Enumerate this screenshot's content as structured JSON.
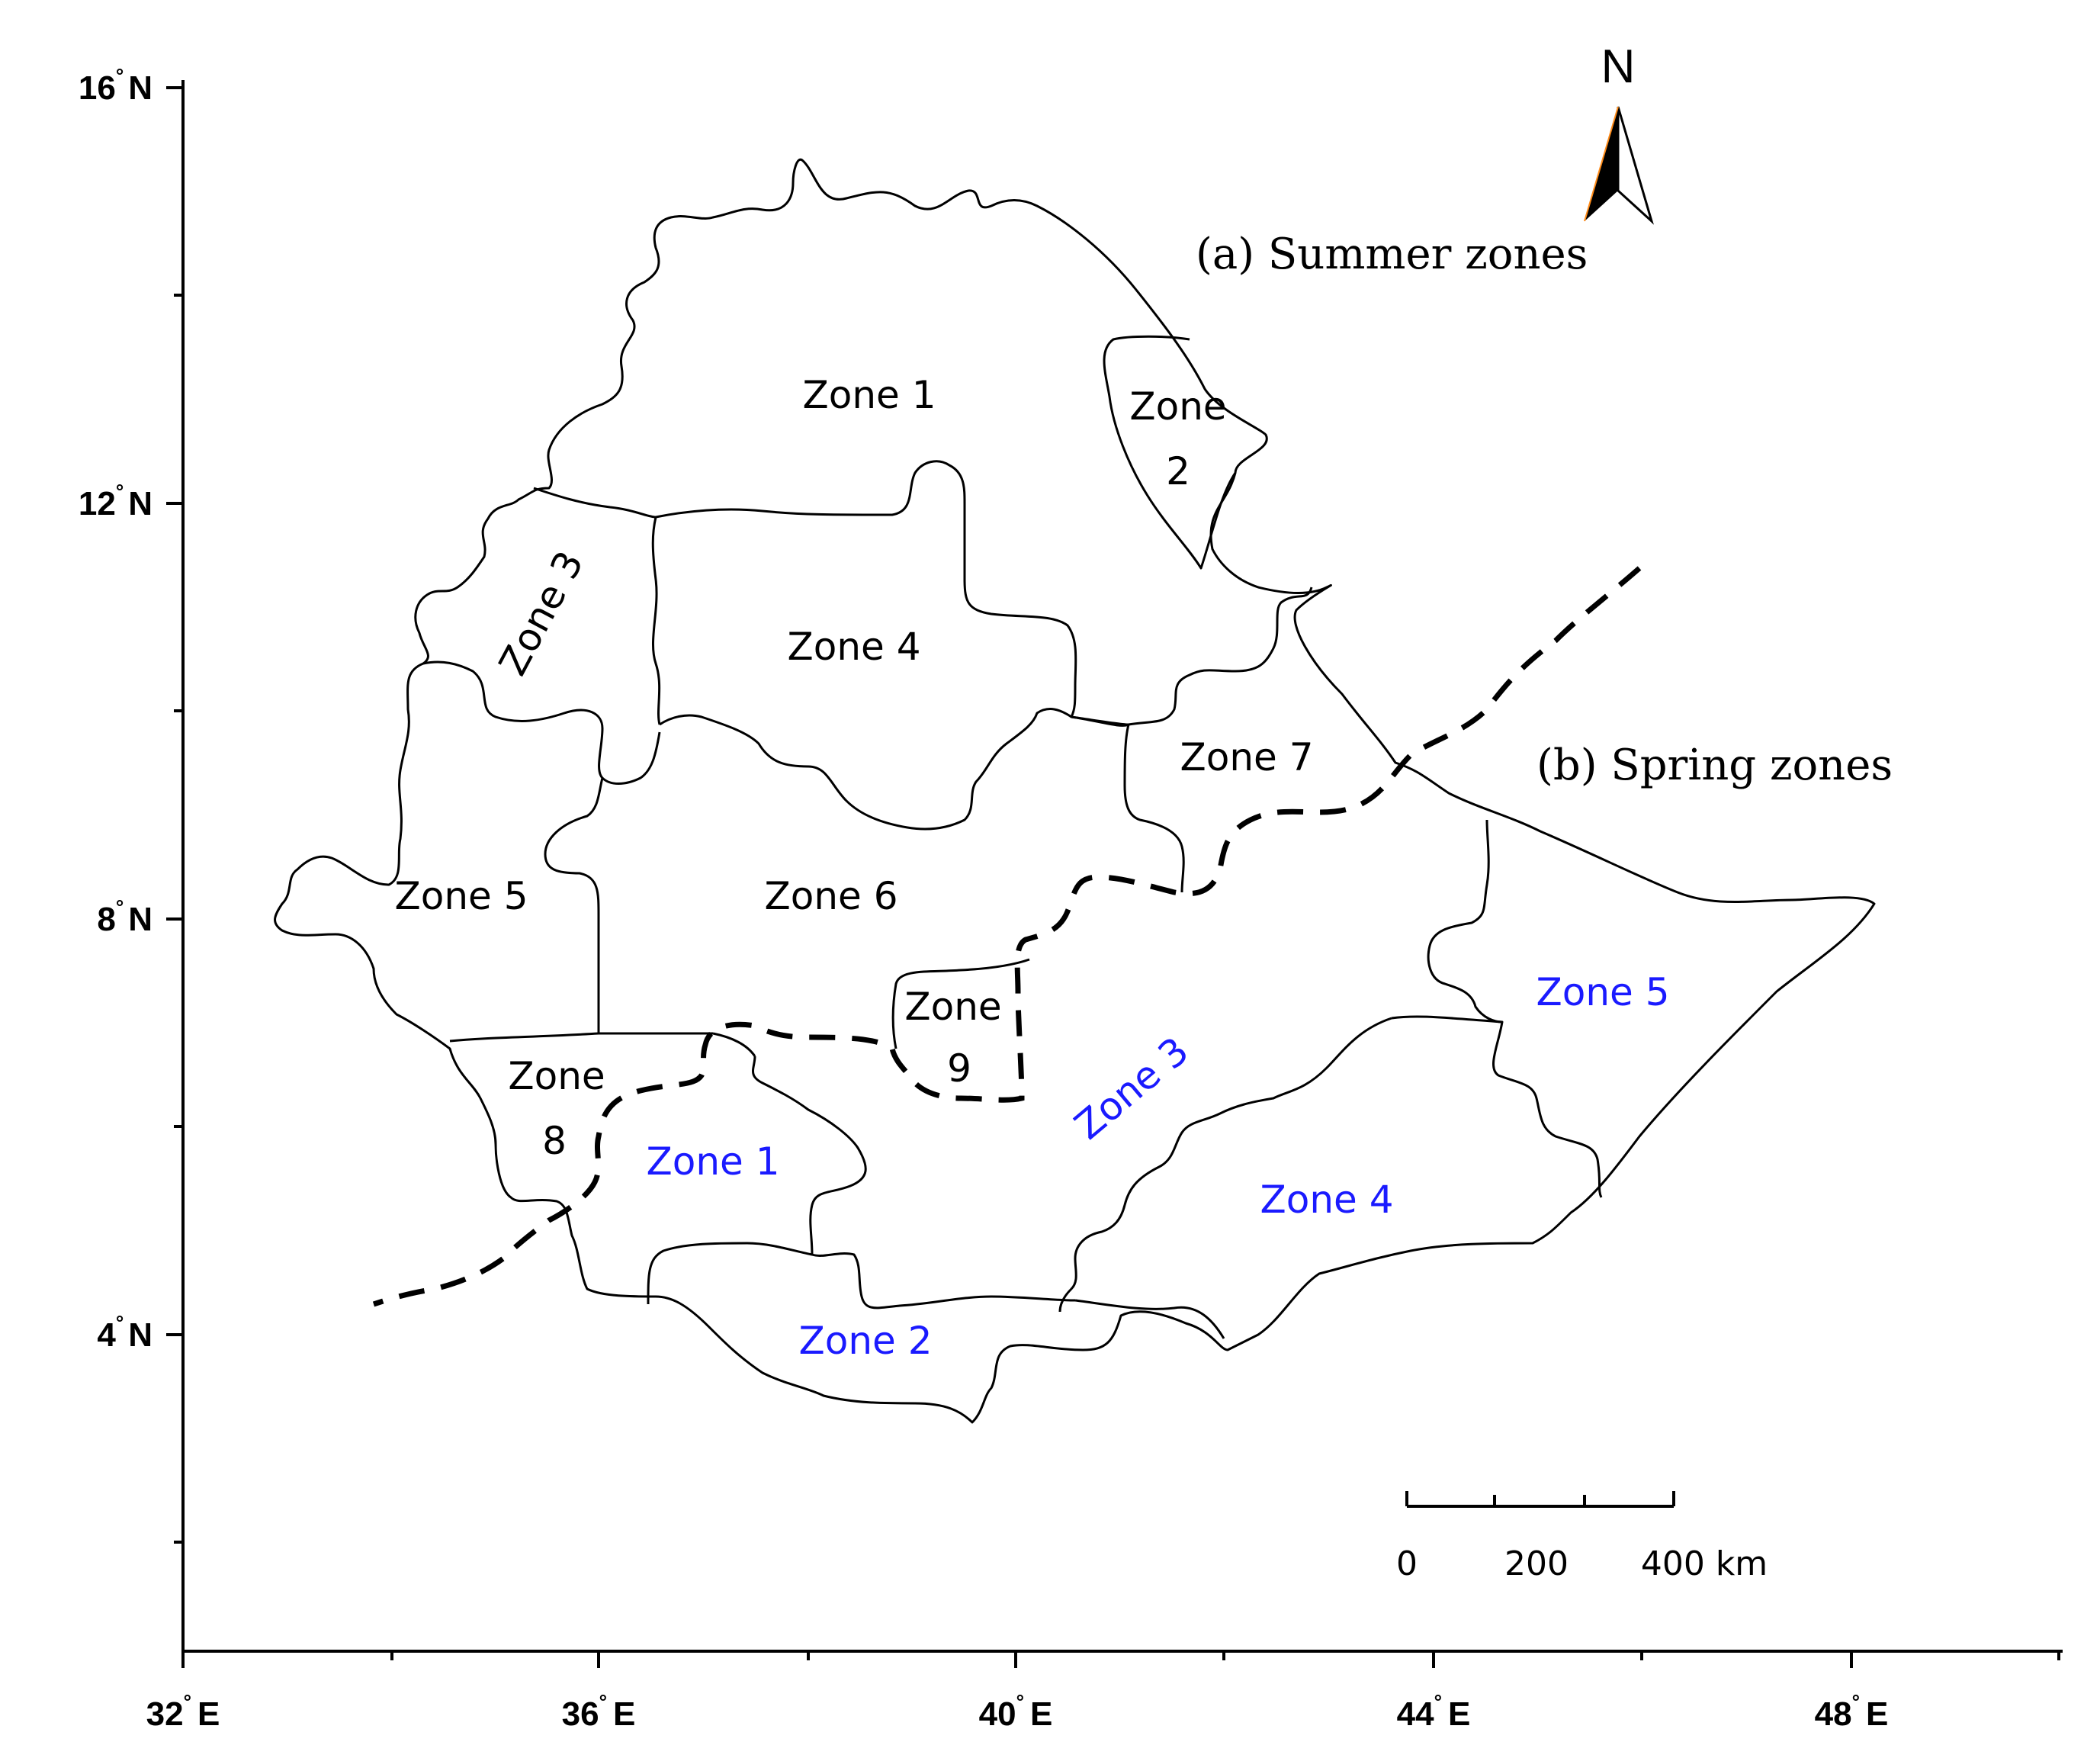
{
  "map": {
    "caption_summer": "(a) Summer zones",
    "caption_spring": "(b) Spring zones",
    "north_label": "N",
    "degree_symbol": "°",
    "summer_zone_color": "#000000",
    "spring_zone_color": "#1a1aff",
    "x_axis": {
      "ticks": [
        {
          "value": "32",
          "suffix": "E"
        },
        {
          "value": "36",
          "suffix": "E"
        },
        {
          "value": "40",
          "suffix": "E"
        },
        {
          "value": "44",
          "suffix": "E"
        },
        {
          "value": "48",
          "suffix": "E"
        }
      ]
    },
    "y_axis": {
      "ticks": [
        {
          "value": "16",
          "suffix": "N"
        },
        {
          "value": "12",
          "suffix": "N"
        },
        {
          "value": "8",
          "suffix": "N"
        },
        {
          "value": "4",
          "suffix": "N"
        }
      ]
    },
    "summer_zones": {
      "z1": "Zone 1",
      "z2_line1": "Zone",
      "z2_line2": "2",
      "z3": "Zone 3",
      "z4": "Zone 4",
      "z5": "Zone 5",
      "z6": "Zone 6",
      "z7": "Zone 7",
      "z8_line1": "Zone",
      "z8_line2": "8",
      "z9_line1": "Zone",
      "z9_line2": "9"
    },
    "spring_zones": {
      "z1": "Zone 1",
      "z2": "Zone 2",
      "z3": "Zone 3",
      "z4": "Zone 4",
      "z5": "Zone 5"
    },
    "scale_bar": {
      "labels": [
        "0",
        "200",
        "400 km"
      ]
    }
  }
}
